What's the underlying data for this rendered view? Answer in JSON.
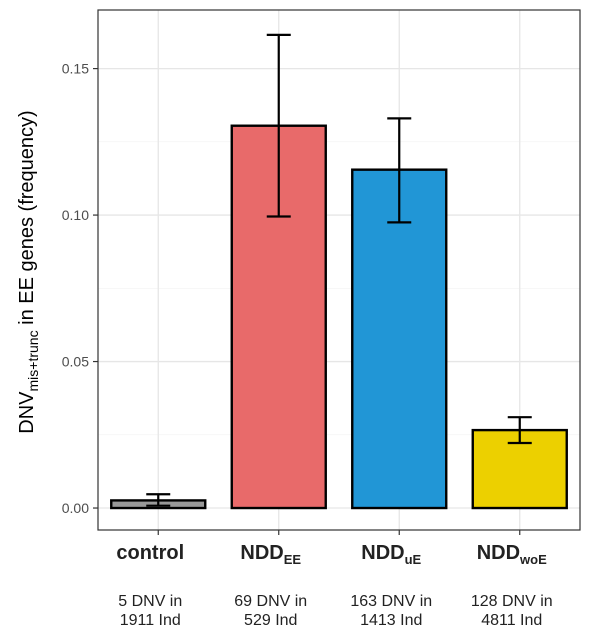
{
  "chart_data": {
    "type": "bar",
    "categories": [
      {
        "main": "control",
        "sub": "",
        "note_line1": "5 DNV in",
        "note_line2": "1911 Ind",
        "value": 0.0026,
        "err_low": 0.0008,
        "err_high": 0.0047,
        "color": "#999999"
      },
      {
        "main": "NDD",
        "sub": "EE",
        "note_line1": "69 DNV in",
        "note_line2": "529 Ind",
        "value": 0.1305,
        "err_low": 0.0995,
        "err_high": 0.1615,
        "color": "#e86a6a"
      },
      {
        "main": "NDD",
        "sub": "uE",
        "note_line1": "163 DNV in",
        "note_line2": "1413 Ind",
        "value": 0.1155,
        "err_low": 0.0975,
        "err_high": 0.133,
        "color": "#2196d6"
      },
      {
        "main": "NDD",
        "sub": "woE",
        "note_line1": "128 DNV in",
        "note_line2": "4811 Ind",
        "value": 0.0266,
        "err_low": 0.0222,
        "err_high": 0.031,
        "color": "#ecd000"
      }
    ],
    "ylabel": {
      "prefix": "DNV",
      "sub": "mis+trunc",
      "suffix": " in EE genes (frequency)"
    },
    "yticks": [
      "0.00",
      "0.05",
      "0.10",
      "0.15"
    ],
    "ytick_values": [
      0,
      0.05,
      0.1,
      0.15
    ],
    "ylim": [
      -0.0075,
      0.17
    ],
    "grid": true,
    "legend": "none"
  }
}
